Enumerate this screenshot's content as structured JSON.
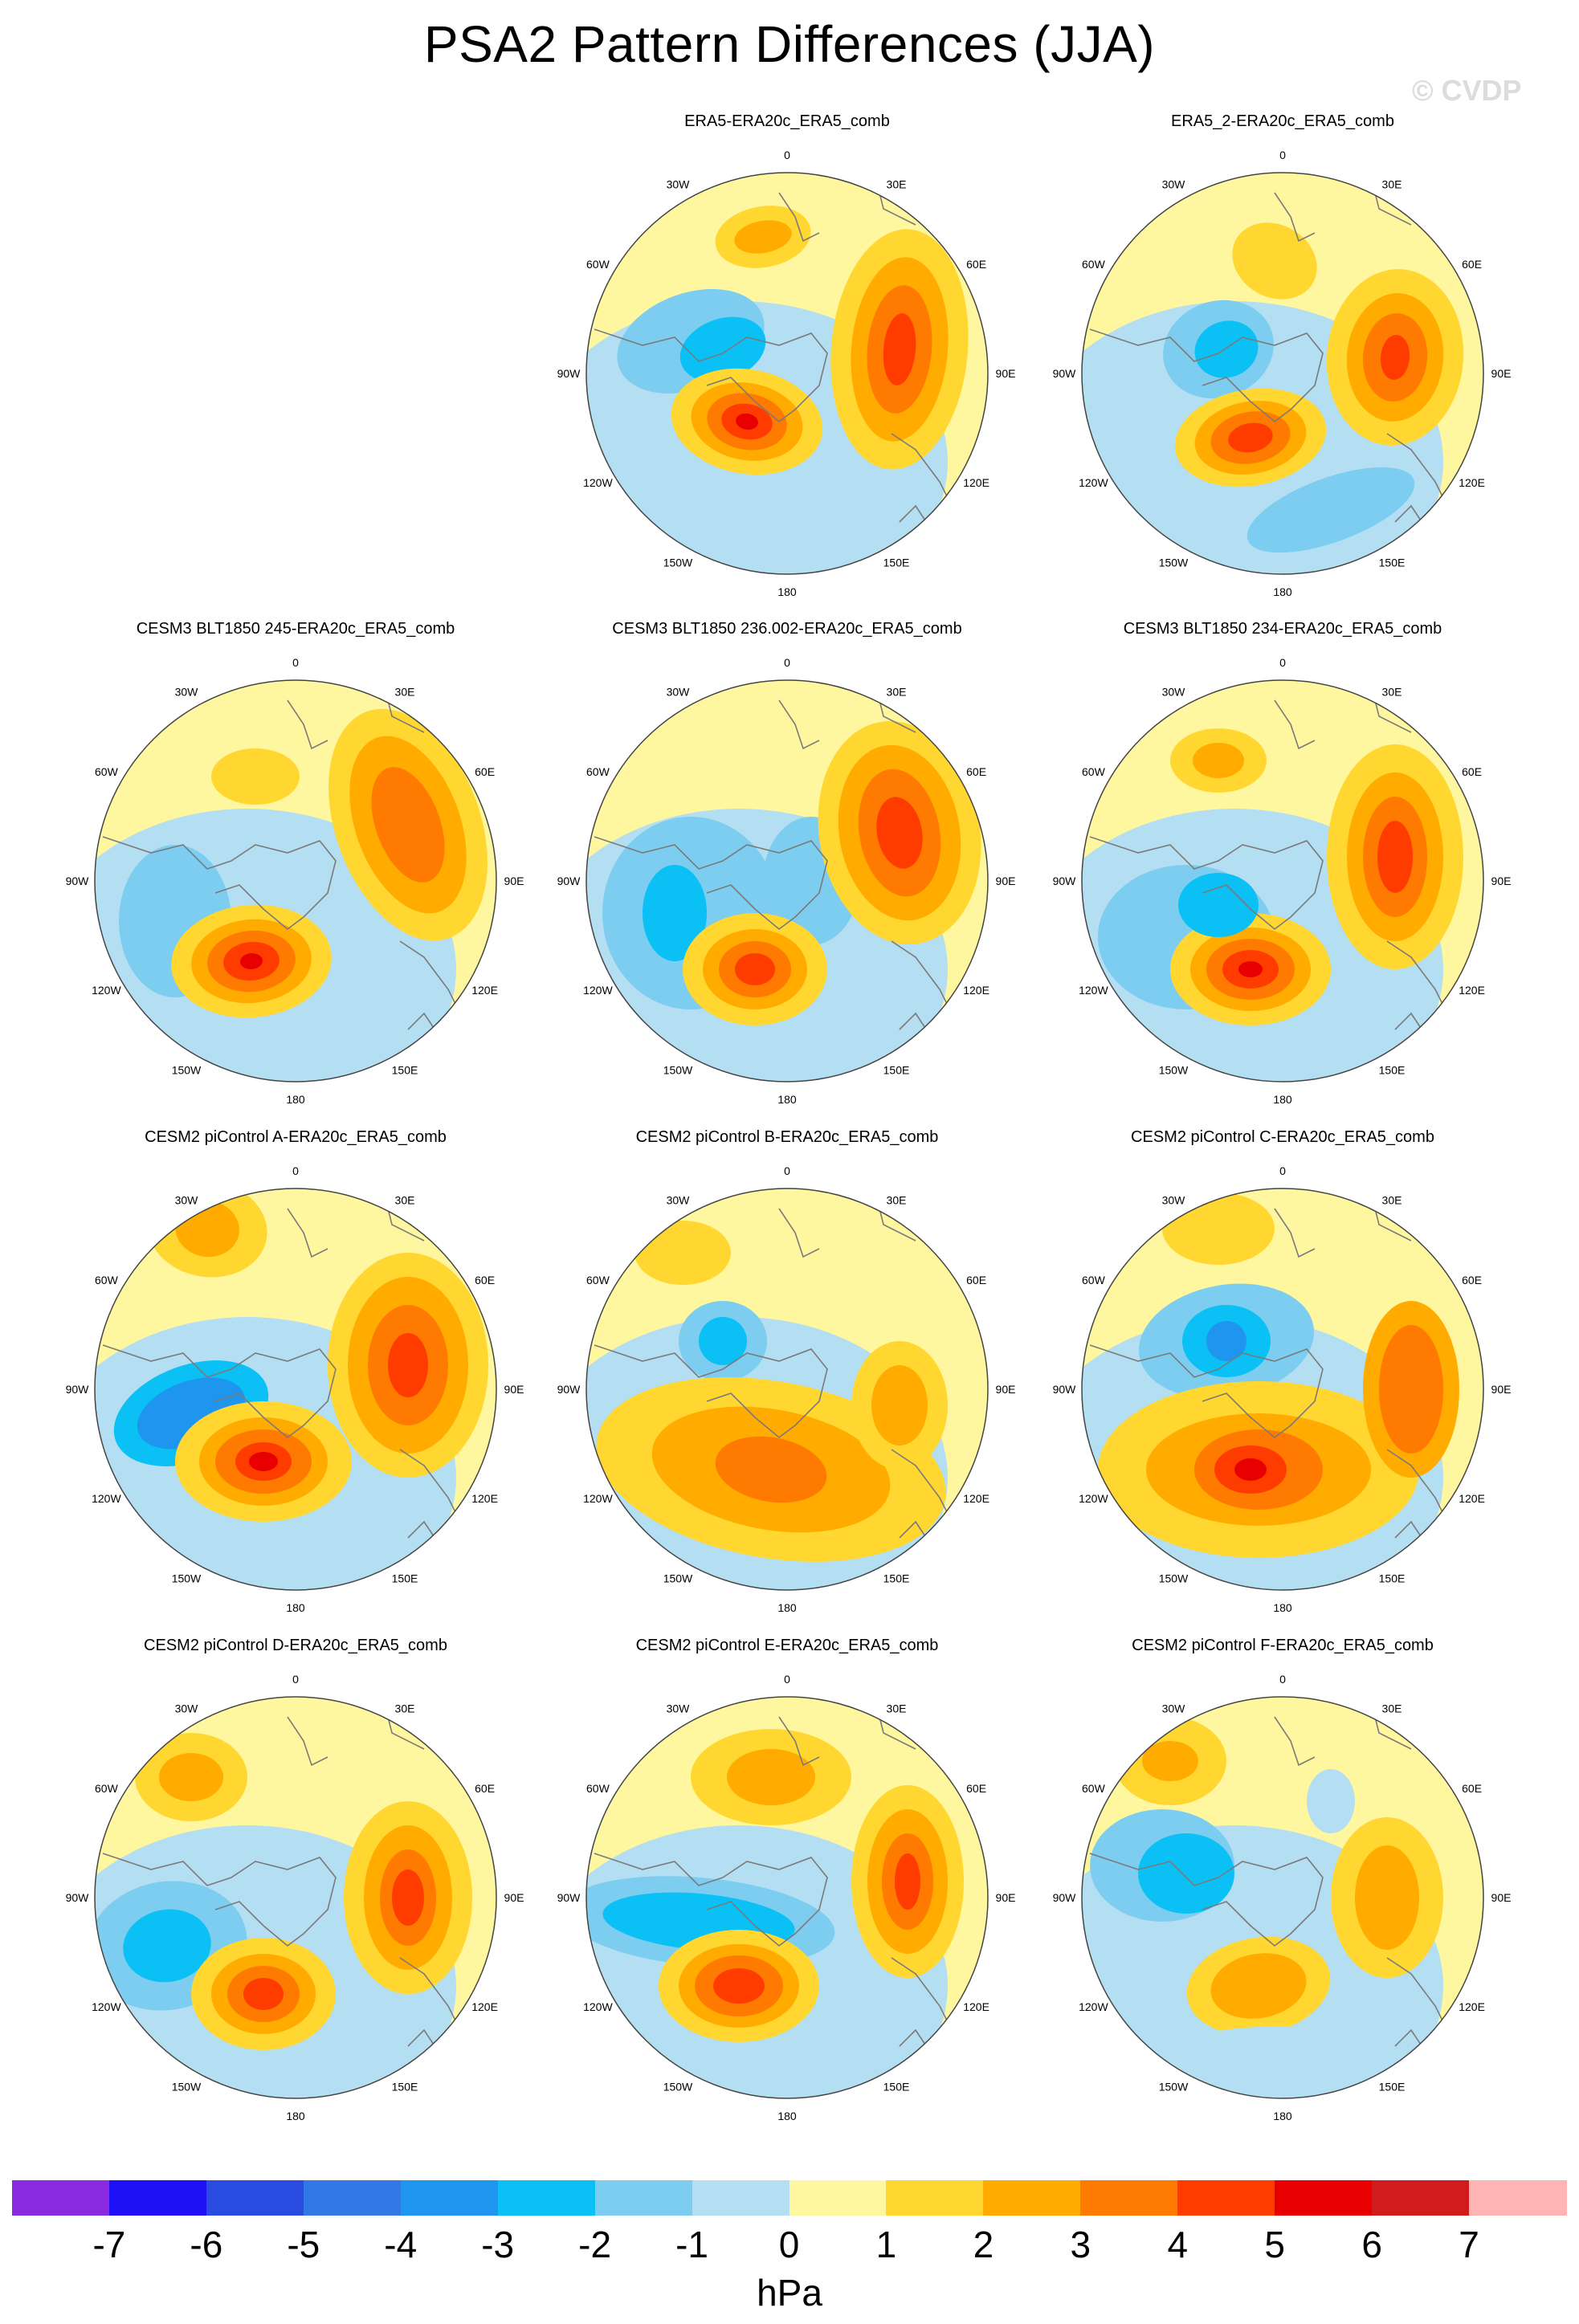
{
  "title": "PSA2 Pattern Differences (JJA)",
  "watermark": "© CVDP",
  "lon_labels": [
    "0",
    "30E",
    "60E",
    "90E",
    "120E",
    "150E",
    "180",
    "150W",
    "120W",
    "90W",
    "60W",
    "30W"
  ],
  "panels": [
    {
      "title": "ERA5-ERA20c_ERA5_comb"
    },
    {
      "title": "ERA5_2-ERA20c_ERA5_comb"
    },
    {
      "title": "CESM3 BLT1850 245-ERA20c_ERA5_comb"
    },
    {
      "title": "CESM3 BLT1850 236.002-ERA20c_ERA5_comb"
    },
    {
      "title": "CESM3 BLT1850 234-ERA20c_ERA5_comb"
    },
    {
      "title": "CESM2 piControl A-ERA20c_ERA5_comb"
    },
    {
      "title": "CESM2 piControl B-ERA20c_ERA5_comb"
    },
    {
      "title": "CESM2 piControl C-ERA20c_ERA5_comb"
    },
    {
      "title": "CESM2 piControl D-ERA20c_ERA5_comb"
    },
    {
      "title": "CESM2 piControl E-ERA20c_ERA5_comb"
    },
    {
      "title": "CESM2 piControl F-ERA20c_ERA5_comb"
    }
  ],
  "colorbar": {
    "units": "hPa",
    "ticks": [
      "-7",
      "-6",
      "-5",
      "-4",
      "-3",
      "-2",
      "-1",
      "0",
      "1",
      "2",
      "3",
      "4",
      "5",
      "6",
      "7"
    ],
    "colors": [
      "#8a2be2",
      "#1e10f5",
      "#2a4be0",
      "#3277e6",
      "#1e96f0",
      "#0ac0f5",
      "#7dcdf0",
      "#b4def2",
      "#fff7a0",
      "#ffd730",
      "#ffab00",
      "#ff7a00",
      "#ff3c00",
      "#e80000",
      "#d01c1c",
      "#ffb4b4"
    ]
  }
}
